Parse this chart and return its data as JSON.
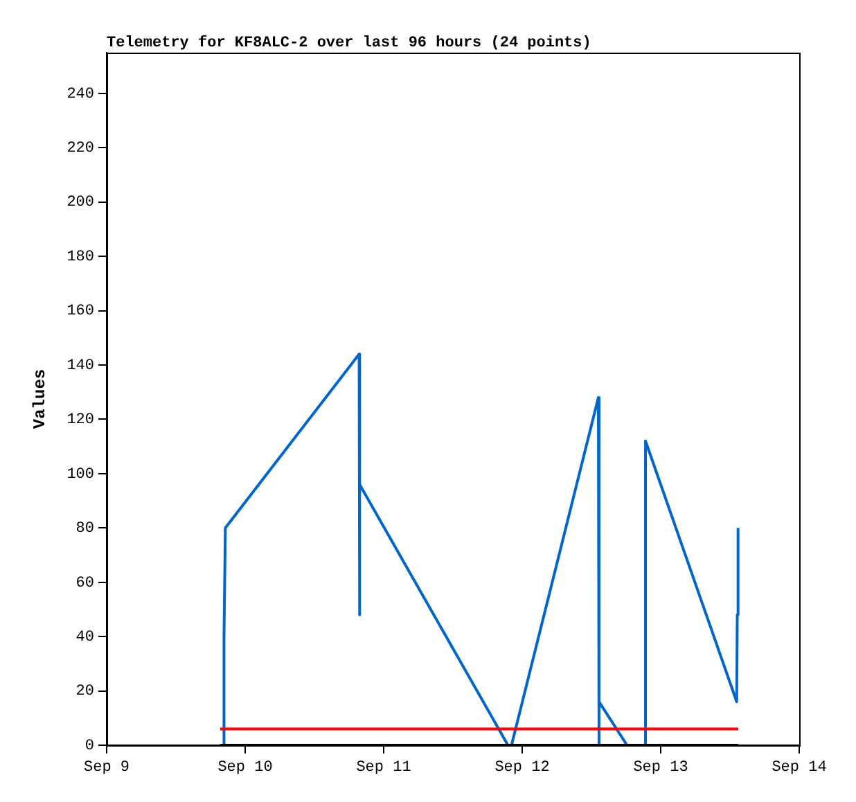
{
  "chart_data": {
    "type": "line",
    "title": "Telemetry for KF8ALC-2 over last 96 hours (24 points)",
    "ylabel": "Values",
    "xlim": [
      "--09-09",
      "--09-14"
    ],
    "xticks": [
      {
        "value": "--09-09",
        "label": "Sep 9"
      },
      {
        "value": "--09-10",
        "label": "Sep 10"
      },
      {
        "value": "--09-11",
        "label": "Sep 11"
      },
      {
        "value": "--09-12",
        "label": "Sep 12"
      },
      {
        "value": "--09-13",
        "label": "Sep 13"
      },
      {
        "value": "--09-14",
        "label": "Sep 14"
      }
    ],
    "ylim": [
      0,
      255
    ],
    "yticks": [
      0,
      20,
      40,
      60,
      80,
      100,
      120,
      140,
      160,
      180,
      200,
      220,
      240
    ],
    "grid": false,
    "legend": false,
    "marker": "none",
    "line_style": "solid",
    "series": [
      {
        "color": "#000000",
        "x": [
          "--09-09T19:41",
          "--09-13T13:26"
        ],
        "values": [
          0,
          0
        ]
      },
      {
        "color": "#ff0000",
        "x": [
          "--09-09T19:41",
          "--09-13T13:26"
        ],
        "values": [
          6,
          6
        ]
      },
      {
        "color": "#0066cc",
        "x": [
          "--09-09T20:20",
          "--09-09T20:20",
          "--09-09T20:34",
          "--09-10T19:45",
          "--09-10T19:50",
          "--09-10T19:50",
          "--09-11T21:32",
          "--09-11T22:09",
          "--09-12T13:12",
          "--09-12T13:12",
          "--09-12T13:26",
          "--09-12T18:10",
          "--09-12T21:22",
          "--09-12T21:22",
          "--09-13T13:10",
          "--09-13T13:16",
          "--09-13T13:24"
        ],
        "values": [
          0,
          40,
          80,
          144,
          48,
          96,
          0,
          0,
          128,
          0,
          16,
          0,
          0,
          112,
          16,
          48,
          80
        ]
      }
    ]
  }
}
